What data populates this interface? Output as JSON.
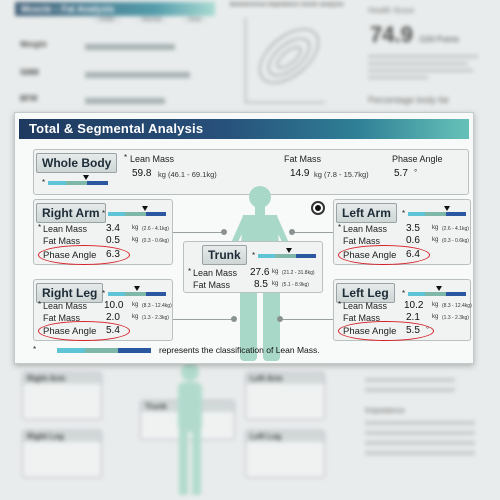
{
  "background": {
    "header": "Muscle – Fat Analysis",
    "columns": [
      "Under",
      "Normal",
      "Over"
    ],
    "rows": [
      "Weight",
      "SMM",
      "BFM"
    ],
    "scatter_title": "Bioelectrical impedance vector analysis",
    "score_title": "Health Score",
    "score_value": "74.9",
    "score_unit": "/100 Points",
    "pbf_title": "Percentage body fat",
    "impedance_title": "Impedance"
  },
  "card": {
    "title": "Total & Segmental Analysis",
    "whole_body": {
      "title": "Whole Body",
      "lean_mass_label": "Lean Mass",
      "lean_mass_value": "59.8",
      "lean_mass_range": "kg (46.1 - 69.1kg)",
      "fat_mass_label": "Fat Mass",
      "fat_mass_value": "14.9",
      "fat_mass_range": "kg (7.8 - 15.7kg)",
      "phase_angle_label": "Phase Angle",
      "phase_angle_value": "5.7",
      "phase_angle_unit": "°"
    },
    "right_arm": {
      "title": "Right Arm",
      "lean_mass_label": "Lean Mass",
      "lean_mass_value": "3.4",
      "lean_mass_unit": "kg",
      "lean_mass_range": "(2.6 - 4.1kg)",
      "fat_mass_label": "Fat Mass",
      "fat_mass_value": "0.5",
      "fat_mass_unit": "kg",
      "fat_mass_range": "(0.3 - 0.6kg)",
      "phase_angle_label": "Phase Angle",
      "phase_angle_value": "6.3"
    },
    "left_arm": {
      "title": "Left Arm",
      "lean_mass_label": "Lean Mass",
      "lean_mass_value": "3.5",
      "lean_mass_unit": "kg",
      "lean_mass_range": "(2.6 - 4.1kg)",
      "fat_mass_label": "Fat Mass",
      "fat_mass_value": "0.6",
      "fat_mass_unit": "kg",
      "fat_mass_range": "(0.3 - 0.6kg)",
      "phase_angle_label": "Phase Angle",
      "phase_angle_value": "6.4"
    },
    "trunk": {
      "title": "Trunk",
      "lean_mass_label": "Lean Mass",
      "lean_mass_value": "27.6",
      "lean_mass_unit": "kg",
      "lean_mass_range": "(21.2 - 31.8kg)",
      "fat_mass_label": "Fat Mass",
      "fat_mass_value": "8.5",
      "fat_mass_unit": "kg",
      "fat_mass_range": "(5.1 - 8.9kg)"
    },
    "right_leg": {
      "title": "Right Leg",
      "lean_mass_label": "Lean Mass",
      "lean_mass_value": "10.0",
      "lean_mass_unit": "kg",
      "lean_mass_range": "(8.3 - 12.4kg)",
      "fat_mass_label": "Fat Mass",
      "fat_mass_value": "2.0",
      "fat_mass_unit": "kg",
      "fat_mass_range": "(1.3 - 2.3kg)",
      "phase_angle_label": "Phase Angle",
      "phase_angle_value": "5.4"
    },
    "left_leg": {
      "title": "Left Leg",
      "lean_mass_label": "Lean Mass",
      "lean_mass_value": "10.2",
      "lean_mass_unit": "kg",
      "lean_mass_range": "(8.3 - 12.4kg)",
      "fat_mass_label": "Fat Mass",
      "fat_mass_value": "2.1",
      "fat_mass_unit": "kg",
      "fat_mass_range": "(1.3 - 2.3kg)",
      "phase_angle_label": "Phase Angle",
      "phase_angle_value": "5.5",
      "phase_angle_unit": "°"
    },
    "legend_marker": "*",
    "legend_text": "represents the classification of Lean Mass.",
    "colors": {
      "bar_low": "#5fc4d6",
      "bar_normal": "#7fb8a9",
      "bar_high": "#2b56a0",
      "phase_angle_highlight": "#d62028",
      "figure": "#a8d8c8"
    }
  }
}
